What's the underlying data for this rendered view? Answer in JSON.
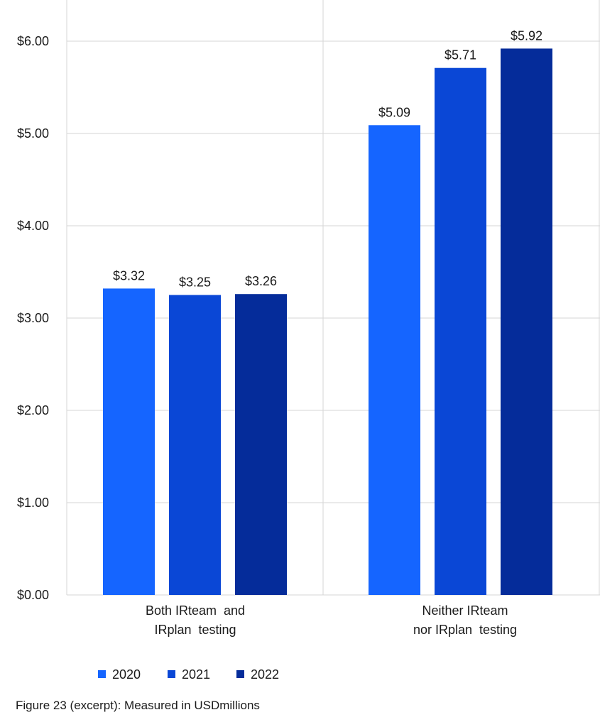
{
  "chart_data": {
    "type": "bar",
    "categories": [
      [
        "Both IRteam  and",
        "IRplan  testing"
      ],
      [
        "Neither IRteam",
        "nor IRplan  testing"
      ]
    ],
    "series": [
      {
        "name": "2020",
        "color": "#1565ff",
        "values": [
          3.32,
          5.09
        ]
      },
      {
        "name": "2021",
        "color": "#0a47d6",
        "values": [
          3.25,
          5.71
        ]
      },
      {
        "name": "2022",
        "color": "#052c9a",
        "values": [
          3.26,
          5.92
        ]
      }
    ],
    "data_labels": [
      [
        "$3.32",
        "$5.09"
      ],
      [
        "$3.25",
        "$5.71"
      ],
      [
        "$3.26",
        "$5.92"
      ]
    ],
    "yticks": [
      0,
      1,
      2,
      3,
      4,
      5,
      6
    ],
    "ytick_labels": [
      "$0.00",
      "$1.00",
      "$2.00",
      "$3.00",
      "$4.00",
      "$5.00",
      "$6.00"
    ],
    "ylim": [
      0,
      6.0
    ],
    "grid": true,
    "legend_position": "bottom-left",
    "caption": "Figure 23 (excerpt): Measured in USDmillions"
  }
}
